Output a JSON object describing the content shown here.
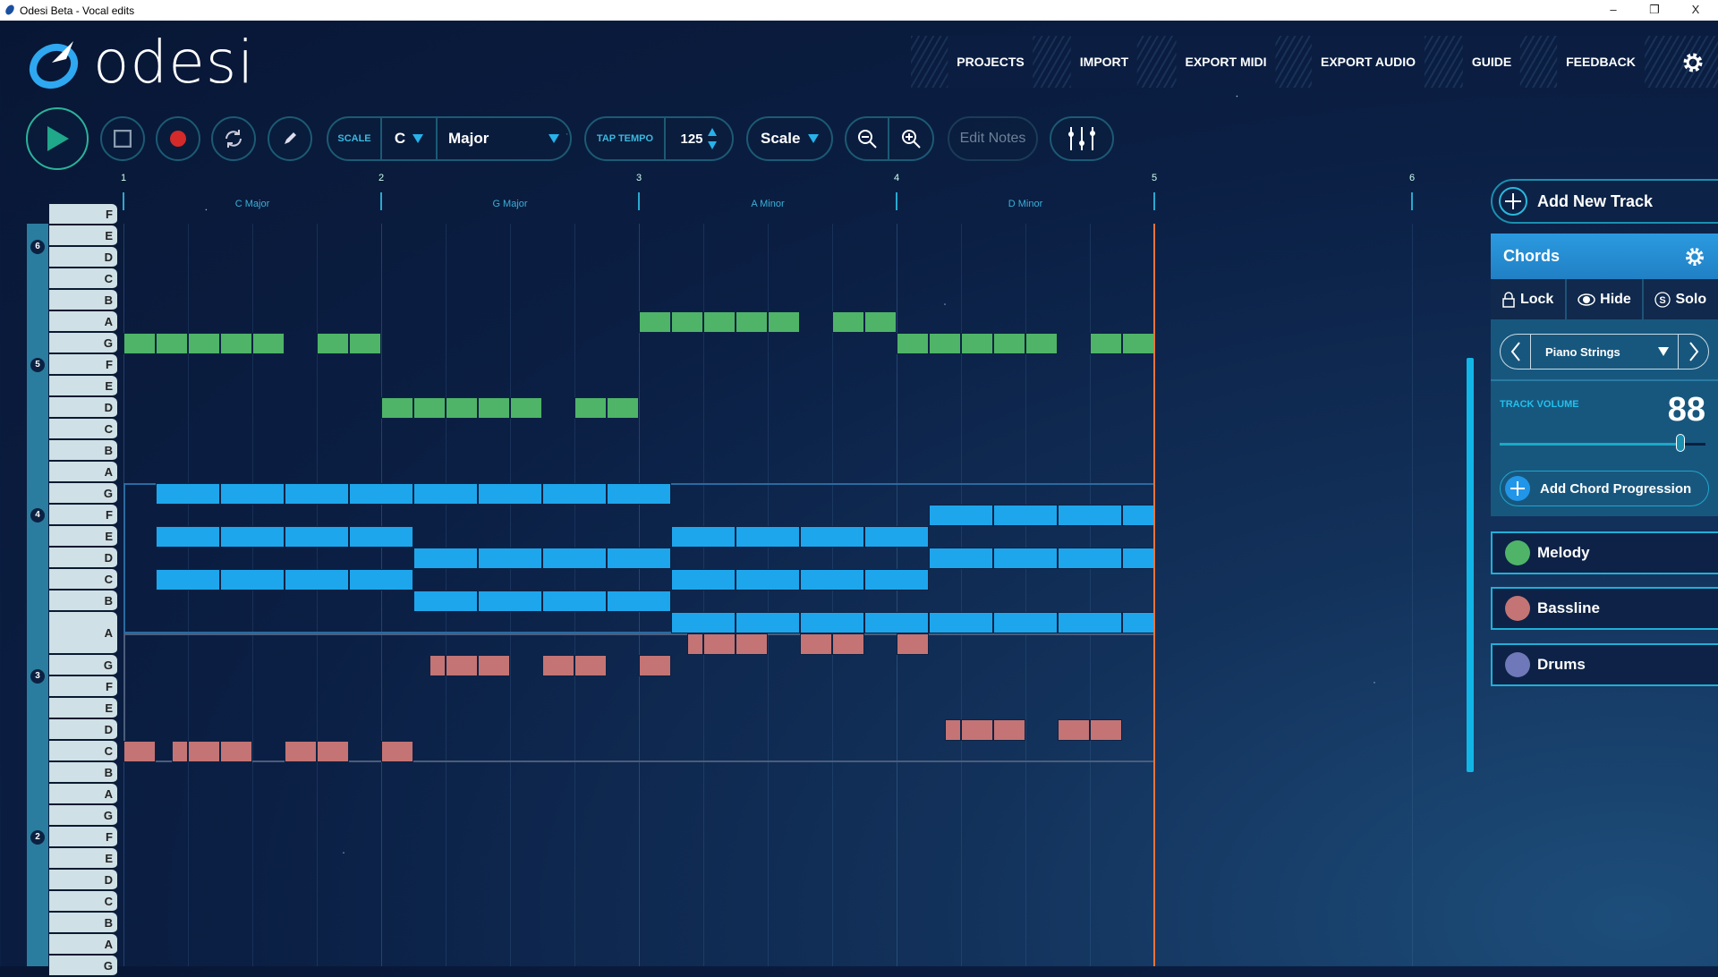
{
  "window": {
    "title": "Odesi Beta - Vocal edits",
    "minimize": "–",
    "restore": "❐",
    "close": "X"
  },
  "logo": {
    "text": "odesi"
  },
  "nav": [
    "PROJECTS",
    "IMPORT",
    "EXPORT MIDI",
    "EXPORT AUDIO",
    "GUIDE",
    "FEEDBACK"
  ],
  "toolbar": {
    "scale_label": "SCALE",
    "key": "C",
    "mode": "Major",
    "tap_tempo": "TAP TEMPO",
    "tempo": "125",
    "scale_dropdown": "Scale",
    "edit_notes": "Edit Notes"
  },
  "timeline": {
    "bars": [
      "1",
      "2",
      "3",
      "4",
      "5",
      "6"
    ],
    "chords": [
      "C Major",
      "G Major",
      "A Minor",
      "D Minor"
    ]
  },
  "piano": {
    "keys": [
      "F",
      "E",
      "D",
      "C",
      "B",
      "A",
      "G",
      "F",
      "E",
      "D",
      "C",
      "B",
      "A",
      "G",
      "F",
      "E",
      "D",
      "C",
      "B",
      "A",
      "G",
      "F",
      "E",
      "D",
      "C",
      "B",
      "A",
      "G",
      "F",
      "E",
      "D",
      "C",
      "B",
      "A",
      "G"
    ],
    "top_octave": 6,
    "octave_labels": [
      "6",
      "5",
      "4",
      "3",
      "2"
    ]
  },
  "colors": {
    "melody": "#4fb468",
    "chords": "#1ea6ec",
    "bassline": "#c47474",
    "drums": "#6f78b8",
    "playhead": "#e8743c"
  },
  "notes": {
    "unit": "eighth",
    "melody": [
      [
        "G5",
        0,
        1
      ],
      [
        "G5",
        1,
        1
      ],
      [
        "G5",
        2,
        1
      ],
      [
        "G5",
        3,
        1
      ],
      [
        "G5",
        4,
        1
      ],
      [
        "G5",
        6,
        1
      ],
      [
        "G5",
        7,
        1
      ],
      [
        "D5",
        8,
        1
      ],
      [
        "D5",
        9,
        1
      ],
      [
        "D5",
        10,
        1
      ],
      [
        "D5",
        11,
        1
      ],
      [
        "D5",
        12,
        1
      ],
      [
        "D5",
        14,
        1
      ],
      [
        "D5",
        15,
        1
      ],
      [
        "A5",
        16,
        1
      ],
      [
        "A5",
        17,
        1
      ],
      [
        "A5",
        18,
        1
      ],
      [
        "A5",
        19,
        1
      ],
      [
        "A5",
        20,
        1
      ],
      [
        "A5",
        22,
        1
      ],
      [
        "A5",
        23,
        1
      ],
      [
        "G5",
        24,
        1
      ],
      [
        "G5",
        25,
        1
      ],
      [
        "G5",
        26,
        1
      ],
      [
        "G5",
        27,
        1
      ],
      [
        "G5",
        28,
        1
      ],
      [
        "G5",
        30,
        1
      ],
      [
        "G5",
        31,
        1
      ]
    ],
    "chords": [
      [
        "G4",
        1,
        2
      ],
      [
        "G4",
        3,
        2
      ],
      [
        "G4",
        5,
        2
      ],
      [
        "G4",
        7,
        2
      ],
      [
        "G4",
        9,
        2
      ],
      [
        "G4",
        11,
        2
      ],
      [
        "G4",
        13,
        2
      ],
      [
        "G4",
        15,
        2
      ],
      [
        "E4",
        1,
        2
      ],
      [
        "E4",
        3,
        2
      ],
      [
        "E4",
        5,
        2
      ],
      [
        "E4",
        7,
        2
      ],
      [
        "C4",
        1,
        2
      ],
      [
        "C4",
        3,
        2
      ],
      [
        "C4",
        5,
        2
      ],
      [
        "C4",
        7,
        2
      ],
      [
        "D4",
        9,
        2
      ],
      [
        "D4",
        11,
        2
      ],
      [
        "D4",
        13,
        2
      ],
      [
        "D4",
        15,
        2
      ],
      [
        "B3",
        9,
        2
      ],
      [
        "B3",
        11,
        2
      ],
      [
        "B3",
        13,
        2
      ],
      [
        "B3",
        15,
        2
      ],
      [
        "E4",
        17,
        2
      ],
      [
        "E4",
        19,
        2
      ],
      [
        "E4",
        21,
        2
      ],
      [
        "E4",
        23,
        2
      ],
      [
        "C4",
        17,
        2
      ],
      [
        "C4",
        19,
        2
      ],
      [
        "C4",
        21,
        2
      ],
      [
        "C4",
        23,
        2
      ],
      [
        "A3",
        17,
        2
      ],
      [
        "A3",
        19,
        2
      ],
      [
        "A3",
        21,
        2
      ],
      [
        "A3",
        23,
        2
      ],
      [
        "A3",
        25,
        2
      ],
      [
        "A3",
        27,
        2
      ],
      [
        "A3",
        29,
        2
      ],
      [
        "A3",
        31,
        1
      ],
      [
        "F4",
        25,
        2
      ],
      [
        "F4",
        27,
        2
      ],
      [
        "F4",
        29,
        2
      ],
      [
        "F4",
        31,
        1
      ],
      [
        "D4",
        25,
        2
      ],
      [
        "D4",
        27,
        2
      ],
      [
        "D4",
        29,
        2
      ],
      [
        "D4",
        31,
        1
      ]
    ],
    "bassline": [
      [
        "C3",
        0,
        1
      ],
      [
        "C3",
        1.5,
        0.5
      ],
      [
        "C3",
        2,
        1
      ],
      [
        "C3",
        3,
        1
      ],
      [
        "C3",
        5,
        1
      ],
      [
        "C3",
        6,
        1
      ],
      [
        "C3",
        8,
        1
      ],
      [
        "G3",
        9.5,
        0.5
      ],
      [
        "G3",
        10,
        1
      ],
      [
        "G3",
        11,
        1
      ],
      [
        "G3",
        13,
        1
      ],
      [
        "G3",
        14,
        1
      ],
      [
        "G3",
        16,
        1
      ],
      [
        "A3",
        17.5,
        0.5
      ],
      [
        "A3",
        18,
        1
      ],
      [
        "A3",
        19,
        1
      ],
      [
        "A3",
        21,
        1
      ],
      [
        "A3",
        22,
        1
      ],
      [
        "A3",
        24,
        1
      ],
      [
        "D3",
        25.5,
        0.5
      ],
      [
        "D3",
        26,
        1
      ],
      [
        "D3",
        27,
        1
      ],
      [
        "D3",
        29,
        1
      ],
      [
        "D3",
        30,
        1
      ]
    ]
  },
  "panel": {
    "add_track": "Add New Track",
    "track": "Chords",
    "lock": "Lock",
    "hide": "Hide",
    "solo": "Solo",
    "instrument": "Piano Strings",
    "volume_label": "TRACK VOLUME",
    "volume": "88",
    "volume_fraction": 0.88,
    "add_progression": "Add Chord Progression",
    "tracks": [
      "Melody",
      "Bassline",
      "Drums"
    ]
  }
}
